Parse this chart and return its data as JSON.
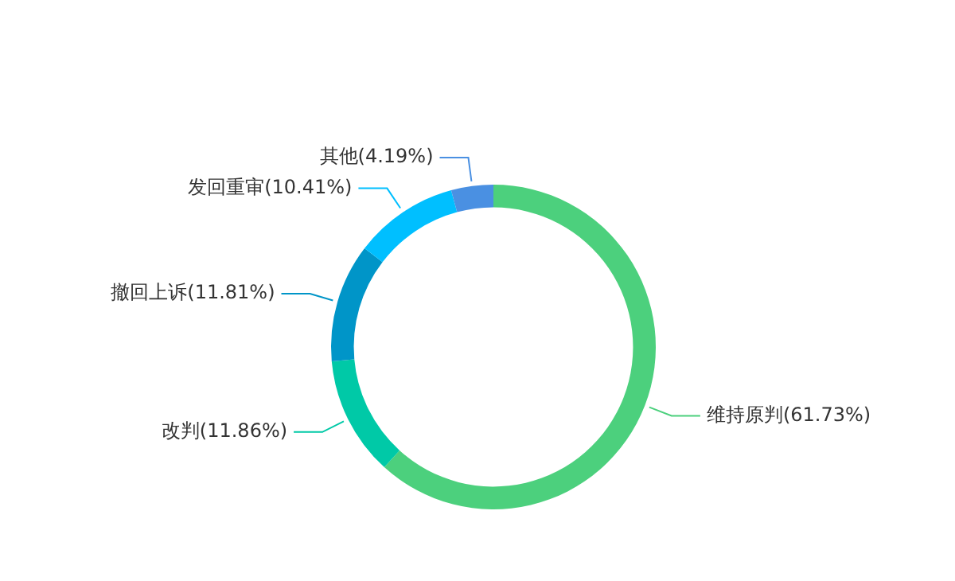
{
  "chart_data": {
    "type": "donut",
    "categories": [
      "维持原判",
      "改判",
      "撤回上诉",
      "发回重审",
      "其他"
    ],
    "values": [
      61.73,
      11.86,
      11.81,
      10.41,
      4.19
    ],
    "colors": [
      "#4cd07d",
      "#00c9a7",
      "#0095c8",
      "#00bfff",
      "#4a90e2"
    ],
    "value_labels": [
      "(61.73%)",
      "(11.86%)",
      "(11.81%)",
      "(10.41%)",
      "(4.19%)"
    ],
    "legend": false
  }
}
